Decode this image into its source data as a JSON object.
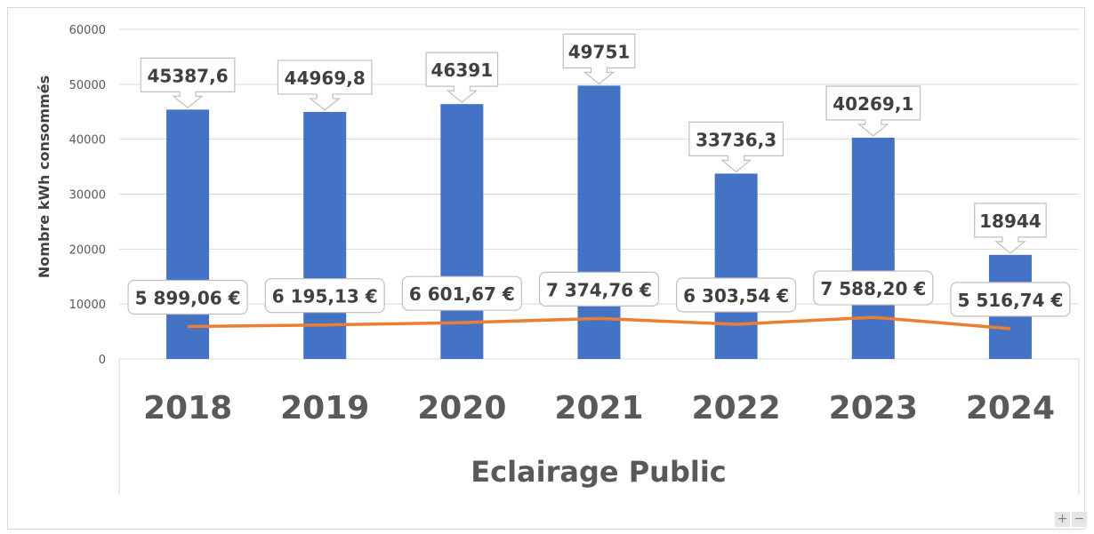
{
  "chart_data": {
    "type": "bar",
    "categories": [
      "2018",
      "2019",
      "2020",
      "2021",
      "2022",
      "2023",
      "2024"
    ],
    "series": [
      {
        "values": [
          45387.6,
          44969.8,
          46391,
          49751,
          33736.3,
          40269.1,
          18944
        ],
        "labels": [
          "45387,6",
          "44969,8",
          "46391",
          "49751",
          "33736,3",
          "40269,1",
          "18944"
        ],
        "color": "#4472C4",
        "kind": "bar"
      },
      {
        "values": [
          5899.06,
          6195.13,
          6601.67,
          7374.76,
          6303.54,
          7588.2,
          5516.74
        ],
        "labels": [
          "5 899,06 €",
          "6 195,13 €",
          "6 601,67 €",
          "7 374,76 €",
          "6 303,54 €",
          "7 588,20 €",
          "5 516,74 €"
        ],
        "color": "#ED7D31",
        "kind": "line"
      }
    ],
    "yticks": [
      "0",
      "10000",
      "20000",
      "30000",
      "40000",
      "50000",
      "60000"
    ],
    "ylim": [
      0,
      60000
    ],
    "ylabel": "Nombre kWh consommés",
    "xlabel": "Eclairage Public",
    "grid": true
  },
  "controls": {
    "zoom_in": "+",
    "zoom_out": "−"
  }
}
